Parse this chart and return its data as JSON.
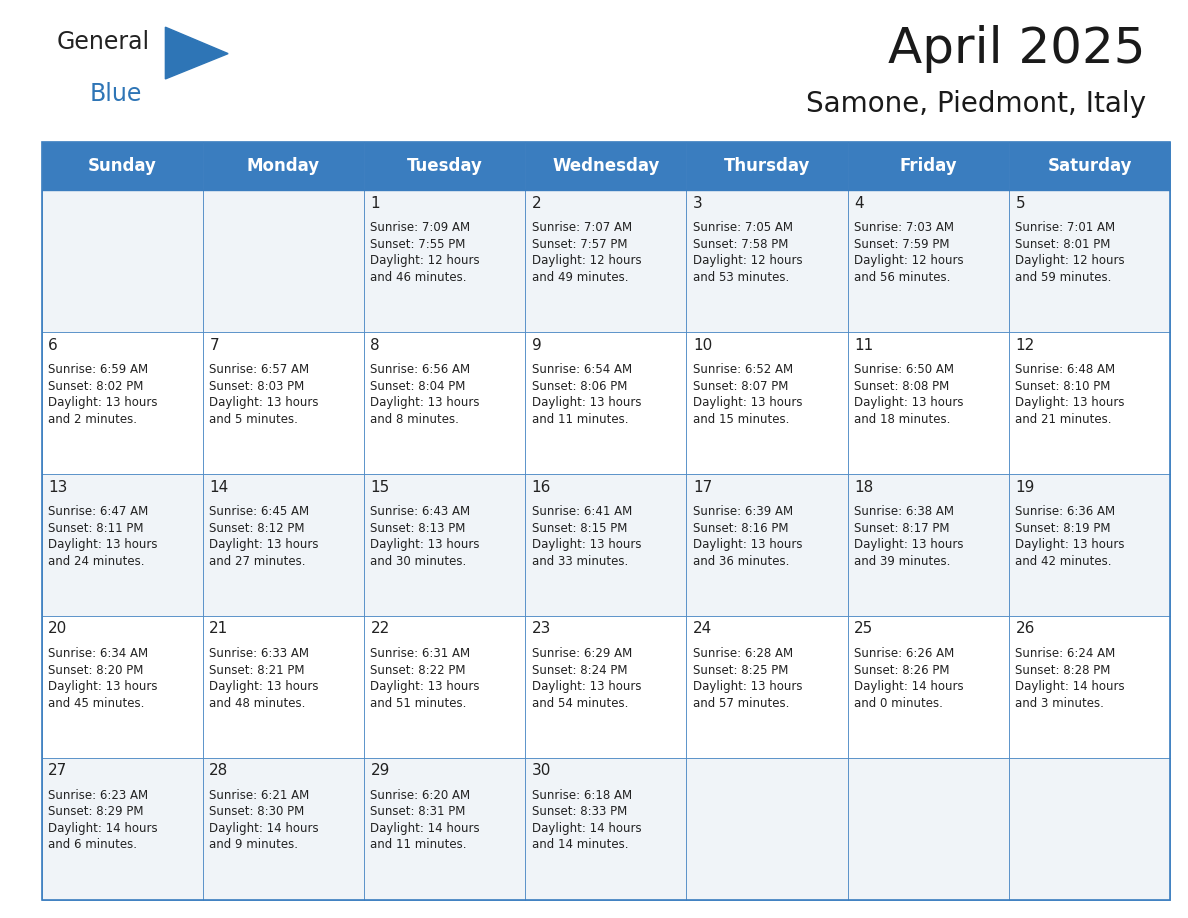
{
  "title": "April 2025",
  "subtitle": "Samone, Piedmont, Italy",
  "header_bg_color": "#3a7dbf",
  "header_text_color": "#ffffff",
  "cell_bg_even": "#f0f4f8",
  "cell_bg_odd": "#ffffff",
  "border_color": "#3a7dbf",
  "text_color": "#222222",
  "day_names": [
    "Sunday",
    "Monday",
    "Tuesday",
    "Wednesday",
    "Thursday",
    "Friday",
    "Saturday"
  ],
  "title_fontsize": 36,
  "subtitle_fontsize": 20,
  "header_fontsize": 12,
  "cell_day_fontsize": 11,
  "cell_info_fontsize": 8.5,
  "logo_general_color": "#222222",
  "logo_blue_color": "#2e75b6",
  "logo_triangle_color": "#2e75b6",
  "weeks": [
    [
      {
        "day": "",
        "info": ""
      },
      {
        "day": "",
        "info": ""
      },
      {
        "day": "1",
        "info": "Sunrise: 7:09 AM\nSunset: 7:55 PM\nDaylight: 12 hours\nand 46 minutes."
      },
      {
        "day": "2",
        "info": "Sunrise: 7:07 AM\nSunset: 7:57 PM\nDaylight: 12 hours\nand 49 minutes."
      },
      {
        "day": "3",
        "info": "Sunrise: 7:05 AM\nSunset: 7:58 PM\nDaylight: 12 hours\nand 53 minutes."
      },
      {
        "day": "4",
        "info": "Sunrise: 7:03 AM\nSunset: 7:59 PM\nDaylight: 12 hours\nand 56 minutes."
      },
      {
        "day": "5",
        "info": "Sunrise: 7:01 AM\nSunset: 8:01 PM\nDaylight: 12 hours\nand 59 minutes."
      }
    ],
    [
      {
        "day": "6",
        "info": "Sunrise: 6:59 AM\nSunset: 8:02 PM\nDaylight: 13 hours\nand 2 minutes."
      },
      {
        "day": "7",
        "info": "Sunrise: 6:57 AM\nSunset: 8:03 PM\nDaylight: 13 hours\nand 5 minutes."
      },
      {
        "day": "8",
        "info": "Sunrise: 6:56 AM\nSunset: 8:04 PM\nDaylight: 13 hours\nand 8 minutes."
      },
      {
        "day": "9",
        "info": "Sunrise: 6:54 AM\nSunset: 8:06 PM\nDaylight: 13 hours\nand 11 minutes."
      },
      {
        "day": "10",
        "info": "Sunrise: 6:52 AM\nSunset: 8:07 PM\nDaylight: 13 hours\nand 15 minutes."
      },
      {
        "day": "11",
        "info": "Sunrise: 6:50 AM\nSunset: 8:08 PM\nDaylight: 13 hours\nand 18 minutes."
      },
      {
        "day": "12",
        "info": "Sunrise: 6:48 AM\nSunset: 8:10 PM\nDaylight: 13 hours\nand 21 minutes."
      }
    ],
    [
      {
        "day": "13",
        "info": "Sunrise: 6:47 AM\nSunset: 8:11 PM\nDaylight: 13 hours\nand 24 minutes."
      },
      {
        "day": "14",
        "info": "Sunrise: 6:45 AM\nSunset: 8:12 PM\nDaylight: 13 hours\nand 27 minutes."
      },
      {
        "day": "15",
        "info": "Sunrise: 6:43 AM\nSunset: 8:13 PM\nDaylight: 13 hours\nand 30 minutes."
      },
      {
        "day": "16",
        "info": "Sunrise: 6:41 AM\nSunset: 8:15 PM\nDaylight: 13 hours\nand 33 minutes."
      },
      {
        "day": "17",
        "info": "Sunrise: 6:39 AM\nSunset: 8:16 PM\nDaylight: 13 hours\nand 36 minutes."
      },
      {
        "day": "18",
        "info": "Sunrise: 6:38 AM\nSunset: 8:17 PM\nDaylight: 13 hours\nand 39 minutes."
      },
      {
        "day": "19",
        "info": "Sunrise: 6:36 AM\nSunset: 8:19 PM\nDaylight: 13 hours\nand 42 minutes."
      }
    ],
    [
      {
        "day": "20",
        "info": "Sunrise: 6:34 AM\nSunset: 8:20 PM\nDaylight: 13 hours\nand 45 minutes."
      },
      {
        "day": "21",
        "info": "Sunrise: 6:33 AM\nSunset: 8:21 PM\nDaylight: 13 hours\nand 48 minutes."
      },
      {
        "day": "22",
        "info": "Sunrise: 6:31 AM\nSunset: 8:22 PM\nDaylight: 13 hours\nand 51 minutes."
      },
      {
        "day": "23",
        "info": "Sunrise: 6:29 AM\nSunset: 8:24 PM\nDaylight: 13 hours\nand 54 minutes."
      },
      {
        "day": "24",
        "info": "Sunrise: 6:28 AM\nSunset: 8:25 PM\nDaylight: 13 hours\nand 57 minutes."
      },
      {
        "day": "25",
        "info": "Sunrise: 6:26 AM\nSunset: 8:26 PM\nDaylight: 14 hours\nand 0 minutes."
      },
      {
        "day": "26",
        "info": "Sunrise: 6:24 AM\nSunset: 8:28 PM\nDaylight: 14 hours\nand 3 minutes."
      }
    ],
    [
      {
        "day": "27",
        "info": "Sunrise: 6:23 AM\nSunset: 8:29 PM\nDaylight: 14 hours\nand 6 minutes."
      },
      {
        "day": "28",
        "info": "Sunrise: 6:21 AM\nSunset: 8:30 PM\nDaylight: 14 hours\nand 9 minutes."
      },
      {
        "day": "29",
        "info": "Sunrise: 6:20 AM\nSunset: 8:31 PM\nDaylight: 14 hours\nand 11 minutes."
      },
      {
        "day": "30",
        "info": "Sunrise: 6:18 AM\nSunset: 8:33 PM\nDaylight: 14 hours\nand 14 minutes."
      },
      {
        "day": "",
        "info": ""
      },
      {
        "day": "",
        "info": ""
      },
      {
        "day": "",
        "info": ""
      }
    ]
  ]
}
